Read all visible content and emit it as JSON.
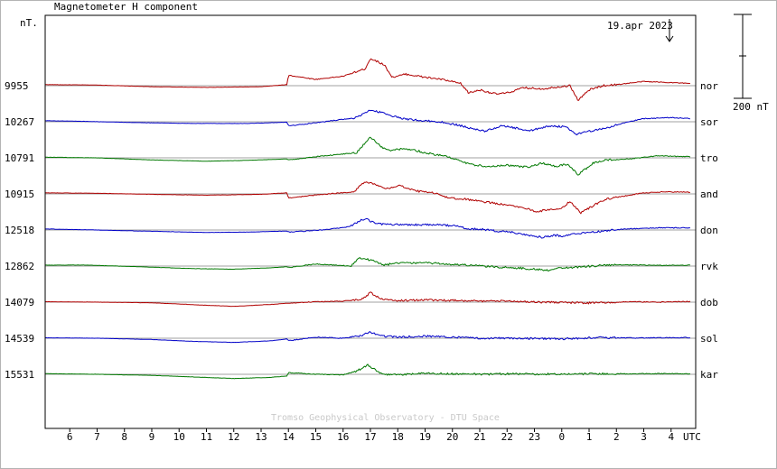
{
  "chart_data": {
    "type": "line",
    "title": "Magnetometer H component",
    "unit_label": "nT.",
    "date_label": "19.apr 2023",
    "scale_bar_label": "200 nT",
    "watermark": "Tromso Geophysical Observatory - DTU Space",
    "x_axis": {
      "label": "UTC",
      "ticks": [
        "6",
        "7",
        "8",
        "9",
        "10",
        "11",
        "12",
        "13",
        "14",
        "15",
        "16",
        "17",
        "18",
        "19",
        "20",
        "21",
        "22",
        "23",
        "0",
        "1",
        "2",
        "3",
        "4"
      ],
      "range_hours": [
        5.1,
        28.9
      ]
    },
    "scale_bar_nT": 200,
    "colors": {
      "red": "#b00000",
      "blue": "#0000c8",
      "green": "#007800",
      "grid": "#a0a0a0",
      "frame": "#000000",
      "marker": "#000000"
    },
    "series": [
      {
        "station": "nor",
        "baseline": "9955",
        "color": "#b00000"
      },
      {
        "station": "sor",
        "baseline": "10267",
        "color": "#0000c8"
      },
      {
        "station": "tro",
        "baseline": "10791",
        "color": "#007800"
      },
      {
        "station": "and",
        "baseline": "10915",
        "color": "#b00000"
      },
      {
        "station": "don",
        "baseline": "12518",
        "color": "#0000c8"
      },
      {
        "station": "rvk",
        "baseline": "12862",
        "color": "#007800"
      },
      {
        "station": "dob",
        "baseline": "14079",
        "color": "#b00000"
      },
      {
        "station": "sol",
        "baseline": "14539",
        "color": "#0000c8"
      },
      {
        "station": "kar",
        "baseline": "15531",
        "color": "#007800"
      }
    ],
    "trace_shapes": [
      [
        [
          5.1,
          5
        ],
        [
          7,
          3
        ],
        [
          9,
          -5
        ],
        [
          11,
          -8
        ],
        [
          13,
          -5
        ],
        [
          13.95,
          5
        ],
        [
          14,
          50
        ],
        [
          15,
          30
        ],
        [
          16,
          45
        ],
        [
          16.8,
          80
        ],
        [
          17,
          130
        ],
        [
          17.5,
          100
        ],
        [
          17.8,
          40
        ],
        [
          18.3,
          55
        ],
        [
          19,
          40
        ],
        [
          19.6,
          30
        ],
        [
          20.3,
          10
        ],
        [
          20.6,
          -35
        ],
        [
          21,
          -20
        ],
        [
          21.6,
          -40
        ],
        [
          22,
          -35
        ],
        [
          22.6,
          -10
        ],
        [
          23.3,
          -15
        ],
        [
          23.9,
          -5
        ],
        [
          24.3,
          0
        ],
        [
          24.6,
          -70
        ],
        [
          25,
          -20
        ],
        [
          25.5,
          0
        ],
        [
          26,
          5
        ],
        [
          27,
          20
        ],
        [
          28,
          15
        ],
        [
          28.7,
          10
        ]
      ],
      [
        [
          5.1,
          5
        ],
        [
          6.5,
          2
        ],
        [
          8.5,
          -4
        ],
        [
          10.5,
          -8
        ],
        [
          12.5,
          -8
        ],
        [
          13.95,
          -2
        ],
        [
          14,
          -20
        ],
        [
          15,
          -5
        ],
        [
          16.5,
          20
        ],
        [
          17,
          55
        ],
        [
          17.4,
          45
        ],
        [
          18,
          20
        ],
        [
          18.5,
          10
        ],
        [
          19.5,
          0
        ],
        [
          20.2,
          -15
        ],
        [
          20.6,
          -30
        ],
        [
          21.2,
          -45
        ],
        [
          21.8,
          -20
        ],
        [
          22.3,
          -30
        ],
        [
          22.8,
          -45
        ],
        [
          23.5,
          -20
        ],
        [
          24.2,
          -25
        ],
        [
          24.5,
          -60
        ],
        [
          25,
          -45
        ],
        [
          25.6,
          -30
        ],
        [
          26.3,
          -5
        ],
        [
          27,
          15
        ],
        [
          28,
          20
        ],
        [
          28.7,
          15
        ]
      ],
      [
        [
          5.1,
          3
        ],
        [
          7,
          0
        ],
        [
          9,
          -10
        ],
        [
          11,
          -16
        ],
        [
          12.5,
          -12
        ],
        [
          13.95,
          -5
        ],
        [
          14,
          -10
        ],
        [
          15,
          5
        ],
        [
          16.5,
          25
        ],
        [
          17,
          100
        ],
        [
          17.4,
          50
        ],
        [
          17.8,
          35
        ],
        [
          18.3,
          45
        ],
        [
          19,
          25
        ],
        [
          19.8,
          5
        ],
        [
          20.4,
          -20
        ],
        [
          20.8,
          -35
        ],
        [
          21.3,
          -40
        ],
        [
          22,
          -35
        ],
        [
          22.8,
          -45
        ],
        [
          23.3,
          -25
        ],
        [
          23.8,
          -40
        ],
        [
          24.2,
          -30
        ],
        [
          24.6,
          -80
        ],
        [
          25.2,
          -20
        ],
        [
          25.7,
          -10
        ],
        [
          26.5,
          -5
        ],
        [
          27.5,
          10
        ],
        [
          28.7,
          5
        ]
      ],
      [
        [
          5.1,
          5
        ],
        [
          7,
          3
        ],
        [
          9,
          -2
        ],
        [
          11,
          -6
        ],
        [
          13,
          -2
        ],
        [
          13.95,
          5
        ],
        [
          14,
          -20
        ],
        [
          15,
          -5
        ],
        [
          16.4,
          10
        ],
        [
          16.8,
          60
        ],
        [
          17.2,
          45
        ],
        [
          17.6,
          25
        ],
        [
          18.1,
          40
        ],
        [
          18.6,
          15
        ],
        [
          19.3,
          5
        ],
        [
          19.9,
          -20
        ],
        [
          20.5,
          -25
        ],
        [
          21,
          -35
        ],
        [
          21.6,
          -45
        ],
        [
          22.2,
          -55
        ],
        [
          22.6,
          -65
        ],
        [
          23.1,
          -85
        ],
        [
          23.5,
          -75
        ],
        [
          24,
          -70
        ],
        [
          24.3,
          -35
        ],
        [
          24.7,
          -90
        ],
        [
          25.1,
          -60
        ],
        [
          25.6,
          -25
        ],
        [
          26.3,
          -10
        ],
        [
          27,
          5
        ],
        [
          27.8,
          10
        ],
        [
          28.7,
          8
        ]
      ],
      [
        [
          5.1,
          5
        ],
        [
          7,
          0
        ],
        [
          9,
          -6
        ],
        [
          11,
          -12
        ],
        [
          12.5,
          -10
        ],
        [
          13.95,
          -5
        ],
        [
          14,
          -10
        ],
        [
          15.2,
          0
        ],
        [
          16.2,
          15
        ],
        [
          16.8,
          55
        ],
        [
          17.2,
          30
        ],
        [
          17.7,
          25
        ],
        [
          18.6,
          25
        ],
        [
          19.3,
          25
        ],
        [
          20.1,
          20
        ],
        [
          20.6,
          5
        ],
        [
          21,
          5
        ],
        [
          21.6,
          -5
        ],
        [
          22.2,
          -10
        ],
        [
          22.8,
          -25
        ],
        [
          23.3,
          -35
        ],
        [
          23.7,
          -25
        ],
        [
          24.1,
          -30
        ],
        [
          24.5,
          -15
        ],
        [
          24.9,
          -15
        ],
        [
          25.5,
          -5
        ],
        [
          26.3,
          5
        ],
        [
          27.5,
          10
        ],
        [
          28.7,
          10
        ]
      ],
      [
        [
          5.1,
          4
        ],
        [
          6.5,
          5
        ],
        [
          8.5,
          -3
        ],
        [
          10.5,
          -12
        ],
        [
          12,
          -15
        ],
        [
          13.4,
          -8
        ],
        [
          13.95,
          -3
        ],
        [
          14,
          -7
        ],
        [
          15,
          10
        ],
        [
          16.3,
          0
        ],
        [
          16.6,
          40
        ],
        [
          17.1,
          25
        ],
        [
          17.5,
          5
        ],
        [
          18,
          15
        ],
        [
          19,
          15
        ],
        [
          19.8,
          10
        ],
        [
          20.5,
          5
        ],
        [
          21.1,
          0
        ],
        [
          21.7,
          -5
        ],
        [
          22.5,
          -10
        ],
        [
          23,
          -15
        ],
        [
          23.5,
          -20
        ],
        [
          23.8,
          -10
        ],
        [
          24.2,
          -8
        ],
        [
          24.6,
          -5
        ],
        [
          25.1,
          0
        ],
        [
          25.8,
          5
        ],
        [
          26.8,
          5
        ],
        [
          27.8,
          3
        ],
        [
          28.7,
          5
        ]
      ],
      [
        [
          5.1,
          2
        ],
        [
          7,
          0
        ],
        [
          9,
          -3
        ],
        [
          11,
          -15
        ],
        [
          12,
          -20
        ],
        [
          13.5,
          -10
        ],
        [
          13.95,
          -5
        ],
        [
          14,
          -5
        ],
        [
          15,
          2
        ],
        [
          16,
          5
        ],
        [
          16.7,
          15
        ],
        [
          17,
          45
        ],
        [
          17.4,
          15
        ],
        [
          18,
          8
        ],
        [
          19,
          10
        ],
        [
          20,
          8
        ],
        [
          21,
          5
        ],
        [
          22,
          5
        ],
        [
          23.5,
          0
        ],
        [
          25,
          -4
        ],
        [
          26.5,
          2
        ],
        [
          27.5,
          0
        ],
        [
          28.7,
          3
        ]
      ],
      [
        [
          5.1,
          2
        ],
        [
          7,
          0
        ],
        [
          9,
          -6
        ],
        [
          10.5,
          -15
        ],
        [
          12,
          -20
        ],
        [
          13.4,
          -12
        ],
        [
          13.95,
          -3
        ],
        [
          14,
          -12
        ],
        [
          15,
          5
        ],
        [
          16,
          0
        ],
        [
          16.6,
          10
        ],
        [
          17,
          30
        ],
        [
          17.4,
          10
        ],
        [
          18,
          5
        ],
        [
          19,
          10
        ],
        [
          20,
          5
        ],
        [
          21,
          0
        ],
        [
          22,
          0
        ],
        [
          24,
          -3
        ],
        [
          25.3,
          3
        ],
        [
          26.6,
          1
        ],
        [
          27.6,
          2
        ],
        [
          28.7,
          3
        ]
      ],
      [
        [
          5.1,
          3
        ],
        [
          7,
          0
        ],
        [
          9,
          -5
        ],
        [
          11,
          -15
        ],
        [
          12,
          -20
        ],
        [
          13.3,
          -15
        ],
        [
          13.95,
          -8
        ],
        [
          14,
          8
        ],
        [
          15,
          0
        ],
        [
          16,
          -2
        ],
        [
          16.5,
          15
        ],
        [
          16.9,
          45
        ],
        [
          17.3,
          10
        ],
        [
          17.6,
          0
        ],
        [
          18,
          -2
        ],
        [
          19,
          5
        ],
        [
          20,
          2
        ],
        [
          21,
          0
        ],
        [
          22,
          2
        ],
        [
          24,
          0
        ],
        [
          25.4,
          3
        ],
        [
          26.7,
          2
        ],
        [
          27.7,
          3
        ],
        [
          28.7,
          2
        ]
      ]
    ]
  }
}
